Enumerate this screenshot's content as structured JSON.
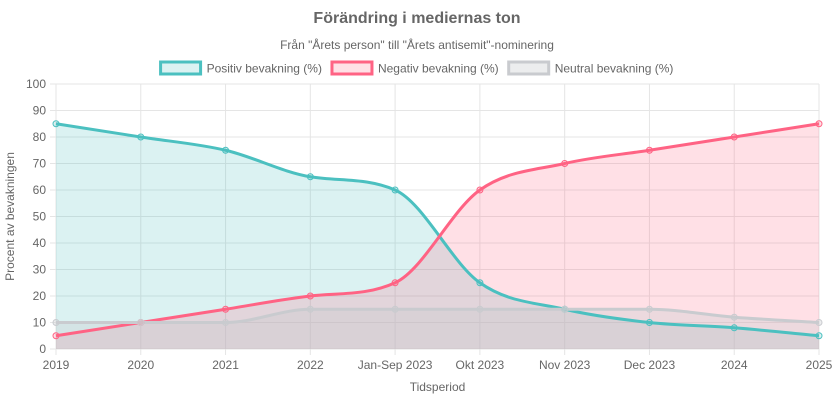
{
  "chart_data": {
    "type": "area",
    "title": "Förändring i mediernas ton",
    "subtitle": "Från \"Årets person\" till \"Årets antisemit\"-nominering",
    "xlabel": "Tidsperiod",
    "ylabel": "Procent av bevakningen",
    "ylim": [
      0,
      100
    ],
    "yticks": [
      0,
      10,
      20,
      30,
      40,
      50,
      60,
      70,
      80,
      90,
      100
    ],
    "grid": true,
    "legend_position": "top",
    "categories": [
      "2019",
      "2020",
      "2021",
      "2022",
      "Jan-Sep 2023",
      "Okt 2023",
      "Nov 2023",
      "Dec 2023",
      "2024",
      "2025"
    ],
    "series": [
      {
        "name": "Positiv bevakning (%)",
        "values": [
          85,
          80,
          75,
          65,
          60,
          25,
          15,
          10,
          8,
          5
        ],
        "color": "#4bc0c0",
        "fill": "rgba(75,192,192,0.2)"
      },
      {
        "name": "Negativ bevakning (%)",
        "values": [
          5,
          10,
          15,
          20,
          25,
          60,
          70,
          75,
          80,
          85
        ],
        "color": "#ff6384",
        "fill": "rgba(255,99,132,0.2)"
      },
      {
        "name": "Neutral bevakning (%)",
        "values": [
          10,
          10,
          10,
          15,
          15,
          15,
          15,
          15,
          12,
          10
        ],
        "color": "#c9cbcf",
        "fill": "rgba(201,203,207,0.35)"
      }
    ]
  }
}
